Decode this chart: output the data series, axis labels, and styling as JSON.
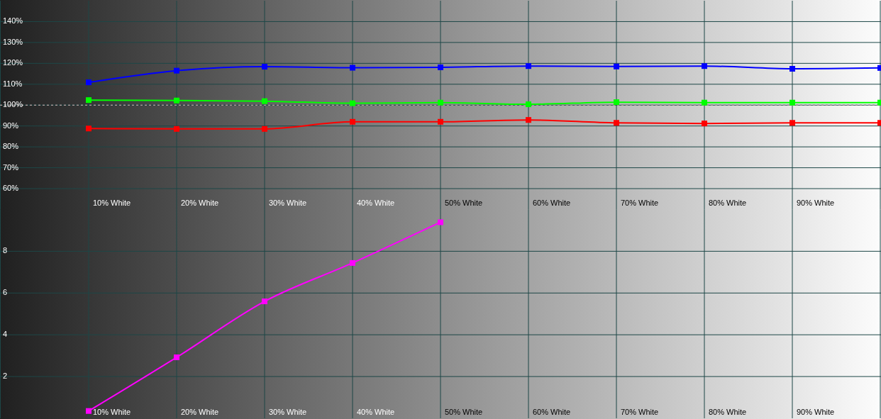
{
  "chart_data": [
    {
      "type": "line",
      "categories": [
        "10% White",
        "20% White",
        "30% White",
        "40% White",
        "50% White",
        "60% White",
        "70% White",
        "80% White",
        "90% White",
        null
      ],
      "series": [
        {
          "color": "#0000ff",
          "values": [
            110.9,
            116.5,
            118.4,
            117.9,
            118.1,
            118.7,
            118.5,
            118.7,
            117.4,
            117.8
          ]
        },
        {
          "color": "#00ff00",
          "values": [
            102.4,
            102.2,
            101.9,
            100.9,
            101.2,
            100.4,
            101.4,
            101.2,
            101.2,
            101.2
          ]
        },
        {
          "color": "#ff0000",
          "values": [
            88.8,
            88.6,
            88.6,
            92.0,
            92.0,
            92.9,
            91.5,
            91.2,
            91.5,
            91.5
          ]
        }
      ],
      "ylim": [
        50,
        150
      ],
      "yticks": [
        {
          "value": 60,
          "label": "60%"
        },
        {
          "value": 70,
          "label": "70%"
        },
        {
          "value": 80,
          "label": "80%"
        },
        {
          "value": 90,
          "label": "90%"
        },
        {
          "value": 100,
          "label": "100%"
        },
        {
          "value": 110,
          "label": "110%"
        },
        {
          "value": 120,
          "label": "120%"
        },
        {
          "value": 130,
          "label": "130%"
        },
        {
          "value": 140,
          "label": "140%"
        }
      ],
      "grid": true,
      "marker": "square",
      "ref_lines": [
        {
          "axis": "y",
          "value": 100,
          "color": "#ffffff",
          "line_style": "dashed"
        }
      ]
    },
    {
      "type": "line",
      "categories": [
        "10% White",
        "20% White",
        "30% White",
        "40% White",
        "50% White",
        "60% White",
        "70% White",
        "80% White",
        "90% White",
        null
      ],
      "values": [
        0.35,
        2.92,
        5.6,
        7.44,
        9.39,
        null,
        null,
        null,
        null,
        null
      ],
      "color": "#ff00ff",
      "ylim": [
        0,
        10
      ],
      "yticks": [
        2,
        4,
        6,
        8
      ],
      "grid": true,
      "marker": "square"
    }
  ]
}
